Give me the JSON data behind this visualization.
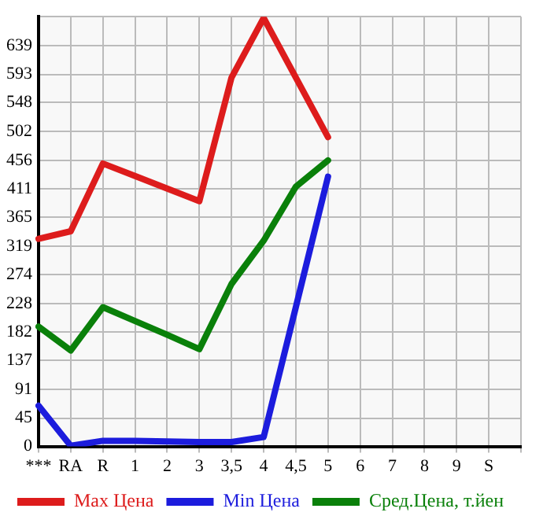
{
  "chart_data": {
    "type": "line",
    "categories": [
      "***",
      "RA",
      "R",
      "1",
      "2",
      "3",
      "3,5",
      "4",
      "4,5",
      "5",
      "6",
      "7",
      "8",
      "9",
      "S",
      null
    ],
    "series": [
      {
        "name": "Max Цена",
        "color": "#dd1c1c",
        "values": [
          331,
          343,
          451,
          431,
          411,
          391,
          588,
          683,
          588,
          493,
          null,
          null,
          null,
          null,
          null,
          null
        ]
      },
      {
        "name": "Min Цена",
        "color": "#1c1cdd",
        "values": [
          65,
          1,
          9,
          9,
          8,
          7,
          7,
          15,
          222,
          430,
          null,
          null,
          null,
          null,
          null,
          null
        ]
      },
      {
        "name": "Сред.Цена, т.йен",
        "color": "#0a800a",
        "values": [
          191,
          153,
          222,
          200,
          178,
          155,
          259,
          328,
          414,
          456,
          null,
          null,
          null,
          null,
          null,
          null
        ]
      }
    ],
    "ylim": [
      0,
      685
    ],
    "yticks": [
      0,
      45,
      91,
      137,
      182,
      228,
      274,
      319,
      365,
      411,
      456,
      502,
      548,
      593,
      639,
      {
        "value": 685,
        "label": null
      }
    ],
    "grid": true,
    "legend": "bottom",
    "marker": "none",
    "line_style": "solid"
  }
}
